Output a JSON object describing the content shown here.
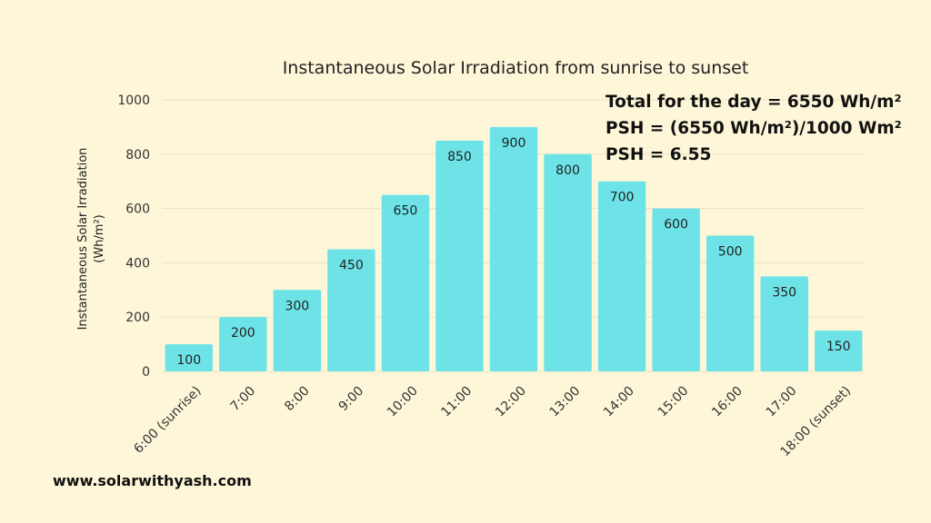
{
  "chart_data": {
    "type": "bar",
    "title": "Instantaneous Solar Irradiation from sunrise to sunset",
    "ylabel": "Instantaneous Solar Irradiation (Wh/m²)",
    "ylabel_lines": [
      "Instantaneous Solar Irradiation",
      "(Wh/m²)"
    ],
    "xlabel": "",
    "categories": [
      "6:00 (sunrise)",
      "7:00",
      "8:00",
      "9:00",
      "10:00",
      "11:00",
      "12:00",
      "13:00",
      "14:00",
      "15:00",
      "16:00",
      "17:00",
      "18:00 (sunset)"
    ],
    "values": [
      100,
      200,
      300,
      450,
      650,
      850,
      900,
      800,
      700,
      600,
      500,
      350,
      150
    ],
    "yticks": [
      0,
      200,
      400,
      600,
      800,
      1000
    ],
    "ylim": [
      0,
      1000
    ],
    "grid": true,
    "bar_color": "#6de3e8"
  },
  "annotations": {
    "line1": "Total for the day = 6550 Wh/m²",
    "line2": "PSH = (6550 Wh/m²)/1000 Wm²",
    "line3": "PSH = 6.55"
  },
  "footer": {
    "website": "www.solarwithyash.com"
  },
  "colors": {
    "background": "#fdf6d8",
    "bar": "#6de3e8",
    "grid": "#e9e2c8"
  }
}
